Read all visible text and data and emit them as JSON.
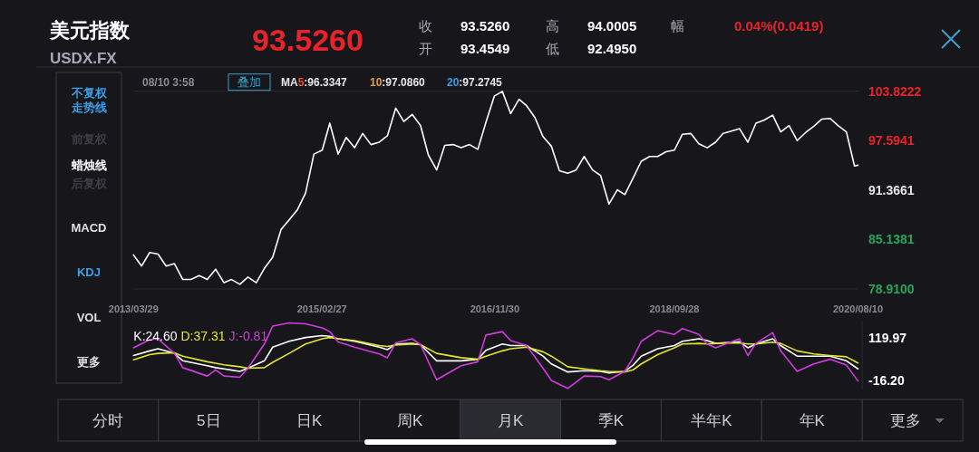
{
  "chart_data": [
    {
      "type": "other",
      "title": "美元指数",
      "subtitle": "USDX.FX",
      "annotations": [
        "93.5260",
        "收",
        "93.5260",
        "高",
        "94.0005",
        "幅",
        "0.04%(0.0419)",
        "开",
        "93.4549",
        "低",
        "92.4950"
      ]
    },
    {
      "type": "other",
      "annotations": [
        "不复权",
        "走势线",
        "前复权",
        "蜡烛线",
        "后复权",
        "MACD",
        "KDJ",
        "VOL",
        "更多"
      ]
    },
    {
      "type": "line",
      "annotations": [
        "08/10 3:58",
        "叠加",
        "MA5:96.3347",
        "10:97.0860",
        "20:97.2745"
      ],
      "x": [
        "2013-03-29",
        "2013-04-28",
        "2013-05-28",
        "2013-06-28",
        "2013-07-28",
        "2013-08-28",
        "2013-09-28",
        "2013-10-28",
        "2013-11-28",
        "2013-12-28",
        "2014-01-28",
        "2014-02-28",
        "2014-03-28",
        "2014-04-28",
        "2014-05-28",
        "2014-06-28",
        "2014-07-28",
        "2014-08-28",
        "2014-09-28",
        "2014-10-28",
        "2014-11-28",
        "2014-12-28",
        "2015-01-28",
        "2015-02-28",
        "2015-03-28",
        "2015-04-28",
        "2015-05-28",
        "2015-06-28",
        "2015-07-28",
        "2015-08-28",
        "2015-09-28",
        "2015-10-28",
        "2015-11-28",
        "2015-12-28",
        "2016-01-28",
        "2016-02-28",
        "2016-03-28",
        "2016-04-28",
        "2016-05-28",
        "2016-06-28",
        "2016-07-28",
        "2016-08-28",
        "2016-09-28",
        "2016-10-28",
        "2016-11-28",
        "2016-12-28",
        "2017-01-28",
        "2017-02-28",
        "2017-03-28",
        "2017-04-28",
        "2017-05-28",
        "2017-06-28",
        "2017-07-28",
        "2017-08-28",
        "2017-09-28",
        "2017-10-28",
        "2017-11-28",
        "2017-12-28",
        "2018-01-28",
        "2018-02-28",
        "2018-03-28",
        "2018-04-28",
        "2018-05-28",
        "2018-06-28",
        "2018-07-28",
        "2018-08-28",
        "2018-09-28",
        "2018-10-28",
        "2018-11-28",
        "2018-12-28",
        "2019-01-28",
        "2019-02-28",
        "2019-03-28",
        "2019-04-28",
        "2019-05-28",
        "2019-06-28",
        "2019-07-28",
        "2019-08-28",
        "2019-09-28",
        "2019-10-28",
        "2019-11-28",
        "2019-12-28",
        "2020-01-28",
        "2020-02-28",
        "2020-03-28",
        "2020-04-28",
        "2020-05-28",
        "2020-06-28",
        "2020-07-28",
        "2020-08-10"
      ],
      "series": [
        {
          "color": "#ffffff",
          "values": [
            83.2,
            81.8,
            83.5,
            83.3,
            81.8,
            82.1,
            80.1,
            80.1,
            80.6,
            80.1,
            81.4,
            79.7,
            80.1,
            79.5,
            80.4,
            79.7,
            81.5,
            82.9,
            86.4,
            87.6,
            88.9,
            91.0,
            95.9,
            96.4,
            99.8,
            95.9,
            98.0,
            96.7,
            98.5,
            97.1,
            97.4,
            98.2,
            101.7,
            100.0,
            100.9,
            99.5,
            95.8,
            93.9,
            97.0,
            97.1,
            96.7,
            97.1,
            96.5,
            99.9,
            103.2,
            103.8,
            101.0,
            102.8,
            102.0,
            100.5,
            98.1,
            96.9,
            93.8,
            93.5,
            93.9,
            95.6,
            93.9,
            93.2,
            89.6,
            91.4,
            90.8,
            92.9,
            95.0,
            95.6,
            95.6,
            96.2,
            96.4,
            98.4,
            98.5,
            97.2,
            96.7,
            97.4,
            98.5,
            98.8,
            99.1,
            97.4,
            99.8,
            100.2,
            100.8,
            98.7,
            99.5,
            97.6,
            98.6,
            99.4,
            100.3,
            100.4,
            99.5,
            98.7,
            94.4,
            94.5
          ]
        }
      ],
      "xlim": [
        "2013-03-29",
        "2020-08-10"
      ],
      "xticks": [
        {
          "value": "2013-03-29",
          "label": "2013/03/29"
        },
        {
          "value": "2015-02-27",
          "label": "2015/02/27"
        },
        {
          "value": "2016-11-30",
          "label": "2016/11/30"
        },
        {
          "value": "2018-09-28",
          "label": "2018/09/28"
        },
        {
          "value": "2020-08-10",
          "label": "2020/08/10"
        }
      ],
      "ylim": [
        78.91,
        103.8222
      ],
      "yticks": [
        {
          "value": 78.91,
          "label": "78.9100"
        },
        {
          "value": 85.1381,
          "label": "85.1381"
        },
        {
          "value": 91.3661,
          "label": "91.3661"
        },
        {
          "value": 97.5941,
          "label": "97.5941"
        },
        {
          "value": 103.8222,
          "label": "103.8222"
        }
      ]
    },
    {
      "type": "line",
      "legend": "top left",
      "tick_labels": "y",
      "x": [
        "2013-03-29",
        "2013-05-28",
        "2013-06-28",
        "2013-08-28",
        "2013-09-28",
        "2013-12-28",
        "2014-01-28",
        "2014-02-28",
        "2014-04-28",
        "2014-05-28",
        "2014-07-28",
        "2014-08-28",
        "2014-10-28",
        "2014-12-28",
        "2015-02-28",
        "2015-03-28",
        "2015-04-28",
        "2015-06-28",
        "2015-09-28",
        "2015-10-28",
        "2015-11-28",
        "2016-01-28",
        "2016-02-28",
        "2016-04-28",
        "2016-07-28",
        "2016-09-28",
        "2016-10-28",
        "2016-12-28",
        "2017-01-28",
        "2017-03-28",
        "2017-05-28",
        "2017-06-28",
        "2017-08-28",
        "2017-10-28",
        "2017-12-28",
        "2018-01-28",
        "2018-03-28",
        "2018-04-28",
        "2018-05-28",
        "2018-07-28",
        "2018-09-28",
        "2018-10-28",
        "2018-12-28",
        "2019-01-28",
        "2019-02-28",
        "2019-05-28",
        "2019-06-28",
        "2019-07-28",
        "2019-09-28",
        "2019-10-28",
        "2019-12-28",
        "2020-02-28",
        "2020-04-28",
        "2020-06-28",
        "2020-08-10"
      ],
      "series": [
        {
          "name": "K:24.60",
          "color": "#ffffff",
          "values": [
            64,
            79,
            86,
            71,
            47,
            31,
            25,
            21,
            13,
            23,
            47,
            91,
            110,
            122,
            128,
            126,
            118,
            110,
            91,
            83,
            101,
            103,
            99,
            47,
            47,
            52,
            81,
            101,
            96,
            96,
            62,
            37,
            11,
            15,
            13,
            8,
            13,
            33,
            62,
            86,
            96,
            110,
            118,
            112,
            103,
            108,
            89,
            101,
            118,
            96,
            62,
            62,
            62,
            47,
            21
          ]
        },
        {
          "name": "D:37.31",
          "color": "#e4e62e",
          "values": [
            50,
            67,
            71,
            73,
            62,
            44,
            39,
            34,
            28,
            23,
            25,
            42,
            71,
            101,
            118,
            122,
            118,
            112,
            96,
            93,
            98,
            101,
            99,
            71,
            57,
            52,
            62,
            79,
            86,
            91,
            76,
            62,
            28,
            21,
            15,
            13,
            11,
            18,
            37,
            67,
            89,
            101,
            103,
            101,
            103,
            105,
            101,
            101,
            107,
            103,
            79,
            69,
            64,
            60,
            40
          ]
        },
        {
          "name": "J:-0.81",
          "color": "#d23be0",
          "values": [
            89,
            115,
            118,
            71,
            25,
            -2,
            18,
            -2,
            -6,
            23,
            101,
            159,
            169,
            166,
            153,
            141,
            108,
            91,
            69,
            57,
            105,
            118,
            99,
            -14,
            31,
            44,
            130,
            141,
            112,
            96,
            23,
            -16,
            -42,
            -2,
            -4,
            -14,
            13,
            57,
            110,
            144,
            132,
            151,
            132,
            101,
            89,
            118,
            64,
            103,
            138,
            79,
            13,
            37,
            52,
            33,
            -18
          ]
        }
      ],
      "xlim": [
        "2013-03-29",
        "2020-08-10"
      ],
      "ylim": [
        -46,
        174
      ],
      "yticks": [
        {
          "value": -16.2,
          "label": "-16.20"
        },
        119.97
      ]
    },
    {
      "type": "other",
      "annotations": [
        "分时",
        "5日",
        "日K",
        "周K",
        "月K",
        "季K",
        "半年K",
        "年K",
        "更多"
      ]
    }
  ]
}
